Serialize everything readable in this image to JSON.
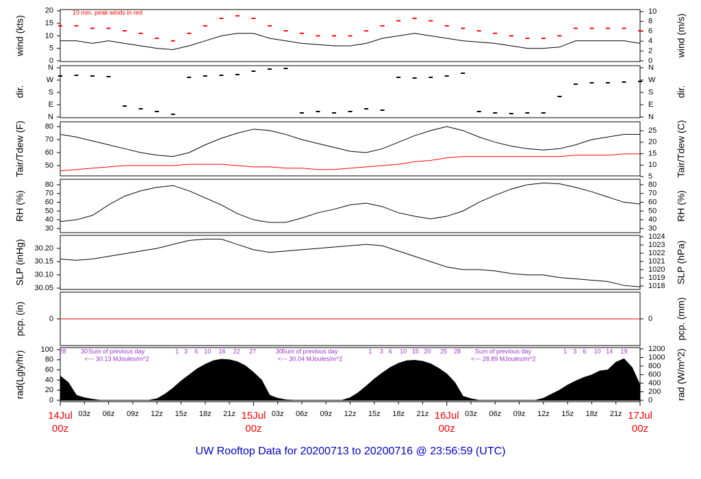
{
  "title": "UW Rooftop Data for 20200713  to  20200716 @ 23:56:59  (UTC)",
  "time_axis": {
    "xlim": [
      0,
      72
    ],
    "xticks": [
      {
        "value": 3,
        "label": "03z"
      },
      {
        "value": 6,
        "label": "06z"
      },
      {
        "value": 9,
        "label": "09z"
      },
      {
        "value": 12,
        "label": "12z"
      },
      {
        "value": 15,
        "label": "15z"
      },
      {
        "value": 18,
        "label": "18z"
      },
      {
        "value": 21,
        "label": "21z"
      },
      {
        "value": 27,
        "label": "03z"
      },
      {
        "value": 30,
        "label": "06z"
      },
      {
        "value": 33,
        "label": "09z"
      },
      {
        "value": 36,
        "label": "12z"
      },
      {
        "value": 39,
        "label": "15z"
      },
      {
        "value": 42,
        "label": "18z"
      },
      {
        "value": 45,
        "label": "21z"
      },
      {
        "value": 51,
        "label": "03z"
      },
      {
        "value": 54,
        "label": "06z"
      },
      {
        "value": 57,
        "label": "09z"
      },
      {
        "value": 60,
        "label": "12z"
      },
      {
        "value": 63,
        "label": "15z"
      },
      {
        "value": 66,
        "label": "18z"
      },
      {
        "value": 69,
        "label": "21z"
      }
    ],
    "day_ticks": [
      {
        "value": 0,
        "label": "14Jul",
        "sublabel": "00z"
      },
      {
        "value": 24,
        "label": "15Jul",
        "sublabel": "00z"
      },
      {
        "value": 48,
        "label": "16Jul",
        "sublabel": "00z"
      },
      {
        "value": 72,
        "label": "17Jul",
        "sublabel": "00z"
      }
    ]
  },
  "chart_data": [
    {
      "type": "line",
      "ylabel": "wind (kts)",
      "y2label": "wind (m/s)",
      "annotation": "10 min. peak winds in red",
      "ylim": [
        -0.3,
        20.5
      ],
      "yticks": [
        0,
        5,
        10,
        15,
        20
      ],
      "y2lim": [
        -0.14,
        10.4
      ],
      "y2ticks": [
        0,
        2,
        4,
        6,
        8,
        10
      ],
      "x": [
        0,
        2,
        4,
        6,
        8,
        10,
        12,
        14,
        16,
        18,
        20,
        22,
        24,
        26,
        28,
        30,
        32,
        34,
        36,
        38,
        40,
        42,
        44,
        46,
        48,
        50,
        52,
        54,
        56,
        58,
        60,
        62,
        64,
        66,
        68,
        70,
        72
      ],
      "series": [
        {
          "name": "wind",
          "color": "#000000",
          "marker": "line",
          "values": [
            8,
            8,
            7,
            8,
            7,
            6,
            5,
            4.5,
            6,
            8,
            10,
            11,
            11,
            9,
            8,
            7,
            6.5,
            6,
            6,
            7,
            9,
            10,
            11,
            10,
            9,
            8,
            7.5,
            7,
            6,
            5,
            5,
            5.5,
            8,
            8,
            8,
            8,
            7
          ]
        },
        {
          "name": "peak",
          "color": "#ff0000",
          "marker": "dash",
          "values": [
            14,
            14,
            13,
            13,
            12,
            11,
            9,
            8,
            11,
            14,
            17,
            18,
            17,
            14,
            12,
            11,
            10,
            10,
            10,
            12,
            14,
            16,
            17,
            16,
            14,
            13,
            12,
            11,
            10,
            9,
            9,
            10,
            13,
            13,
            13,
            13,
            12
          ]
        }
      ]
    },
    {
      "type": "scatter",
      "ylabel": "dir.",
      "y2label": "dir.",
      "ylim": [
        -5,
        375
      ],
      "yticks": [
        {
          "value": 0,
          "label": "N"
        },
        {
          "value": 90,
          "label": "E"
        },
        {
          "value": 180,
          "label": "S"
        },
        {
          "value": 270,
          "label": "W"
        },
        {
          "value": 360,
          "label": "N"
        }
      ],
      "y2lim": [
        -5,
        375
      ],
      "y2ticks": [
        {
          "value": 0,
          "label": "N"
        },
        {
          "value": 90,
          "label": "E"
        },
        {
          "value": 180,
          "label": "S"
        },
        {
          "value": 270,
          "label": "W"
        },
        {
          "value": 360,
          "label": "N"
        }
      ],
      "x": [
        0,
        2,
        4,
        6,
        8,
        10,
        12,
        14,
        16,
        18,
        20,
        22,
        24,
        26,
        28,
        30,
        32,
        34,
        36,
        38,
        40,
        42,
        44,
        46,
        48,
        50,
        52,
        54,
        56,
        58,
        60,
        62,
        64,
        66,
        68,
        70,
        72
      ],
      "series": [
        {
          "name": "direction",
          "color": "#000000",
          "marker": "dash",
          "values": [
            300,
            305,
            300,
            295,
            80,
            60,
            40,
            20,
            290,
            300,
            305,
            310,
            335,
            350,
            355,
            30,
            40,
            30,
            40,
            60,
            50,
            290,
            285,
            290,
            300,
            320,
            40,
            30,
            25,
            30,
            30,
            150,
            240,
            250,
            250,
            255,
            260
          ]
        }
      ]
    },
    {
      "type": "line",
      "ylabel": "Tair/Tdew (F)",
      "y2label": "Tair/Tdew (C)",
      "ylim": [
        42.1,
        83.7
      ],
      "yticks": [
        50,
        60,
        70,
        80
      ],
      "y2lim": [
        5.3,
        28.9
      ],
      "y2ticks": [
        5,
        10,
        15,
        20,
        25
      ],
      "x": [
        0,
        2,
        4,
        6,
        8,
        10,
        12,
        14,
        16,
        18,
        20,
        22,
        24,
        26,
        28,
        30,
        32,
        34,
        36,
        38,
        40,
        42,
        44,
        46,
        48,
        50,
        52,
        54,
        56,
        58,
        60,
        62,
        64,
        66,
        68,
        70,
        72
      ],
      "series": [
        {
          "name": "Tair",
          "color": "#000000",
          "marker": "line",
          "values": [
            74,
            72,
            69,
            66,
            63,
            60,
            58,
            57,
            60,
            66,
            71,
            75,
            78,
            77,
            74,
            70,
            67,
            64,
            61,
            60,
            63,
            68,
            73,
            77,
            80,
            77,
            72,
            68,
            65,
            63,
            62,
            63,
            66,
            70,
            72,
            74,
            74
          ]
        },
        {
          "name": "Tdew",
          "color": "#ff0000",
          "marker": "line",
          "values": [
            46,
            47,
            48,
            49,
            50,
            50,
            50,
            50,
            51,
            51,
            51,
            50,
            49,
            49,
            48,
            48,
            47,
            47,
            48,
            49,
            50,
            51,
            53,
            54,
            56,
            57,
            57,
            57,
            57,
            57,
            57,
            57,
            58,
            58,
            58,
            59,
            59
          ]
        }
      ]
    },
    {
      "type": "line",
      "ylabel": "RH (%)",
      "y2label": "RH (%)",
      "ylim": [
        25.3,
        86.2
      ],
      "yticks": [
        30,
        40,
        50,
        60,
        70,
        80
      ],
      "y2lim": [
        25.3,
        86.2
      ],
      "y2ticks": [
        30,
        40,
        50,
        60,
        70,
        80
      ],
      "x": [
        0,
        2,
        4,
        6,
        8,
        10,
        12,
        14,
        16,
        18,
        20,
        22,
        24,
        26,
        28,
        30,
        32,
        34,
        36,
        38,
        40,
        42,
        44,
        46,
        48,
        50,
        52,
        54,
        56,
        58,
        60,
        62,
        64,
        66,
        68,
        70,
        72
      ],
      "series": [
        {
          "name": "RH",
          "color": "#000000",
          "marker": "line",
          "values": [
            38,
            40,
            45,
            57,
            67,
            73,
            77,
            79,
            73,
            65,
            57,
            47,
            40,
            37,
            37,
            42,
            48,
            52,
            57,
            59,
            55,
            48,
            44,
            41,
            44,
            50,
            60,
            68,
            75,
            80,
            82,
            81,
            77,
            72,
            66,
            60,
            58
          ]
        }
      ]
    },
    {
      "type": "line",
      "ylabel": "SLP (inHg)",
      "y2label": "SLP (hPa)",
      "ylim": [
        30.045,
        30.249
      ],
      "yticks": [
        30.05,
        {
          "value": 30.1,
          "label": "30.10"
        },
        30.15,
        {
          "value": 30.2,
          "label": "30.20"
        }
      ],
      "y2lim": [
        1017.58,
        1024.17
      ],
      "y2ticks": [
        1018,
        1019,
        1020,
        1021,
        1022,
        1023,
        1024
      ],
      "x": [
        0,
        2,
        4,
        6,
        8,
        10,
        12,
        14,
        16,
        18,
        20,
        22,
        24,
        26,
        28,
        30,
        32,
        34,
        36,
        38,
        40,
        42,
        44,
        46,
        48,
        50,
        52,
        54,
        56,
        58,
        60,
        62,
        64,
        66,
        68,
        70,
        72
      ],
      "series": [
        {
          "name": "SLP",
          "color": "#000000",
          "marker": "line",
          "values": [
            30.16,
            30.155,
            30.16,
            30.17,
            30.18,
            30.19,
            30.2,
            30.215,
            30.23,
            30.235,
            30.235,
            30.215,
            30.195,
            30.185,
            30.19,
            30.195,
            30.2,
            30.205,
            30.21,
            30.215,
            30.21,
            30.19,
            30.17,
            30.15,
            30.13,
            30.12,
            30.12,
            30.115,
            30.105,
            30.1,
            30.1,
            30.09,
            30.085,
            30.08,
            30.075,
            30.06,
            30.055
          ]
        }
      ]
    },
    {
      "type": "line",
      "ylabel": "pcp. (in)",
      "y2label": "pcp. (mm)",
      "ylim": [
        -1,
        1
      ],
      "yticks": [
        0
      ],
      "y2lim": [
        -1,
        1
      ],
      "y2ticks": [
        0
      ],
      "x": [
        0,
        72
      ],
      "series": [
        {
          "name": "pcp",
          "color": "#ff0000",
          "marker": "line",
          "values": [
            0,
            0
          ]
        }
      ]
    },
    {
      "type": "area",
      "ylabel": "rad(Lgly/hr)",
      "y2label": "rad (W/m^2)",
      "ylim": [
        -2.7,
        104
      ],
      "yticks": [
        0,
        20,
        40,
        60,
        80,
        100
      ],
      "y2lim": [
        -32,
        1232
      ],
      "y2ticks": [
        0,
        200,
        400,
        600,
        800,
        1000,
        1200
      ],
      "x": [
        0,
        1,
        2,
        3,
        4,
        5,
        6,
        7,
        8,
        9,
        10,
        11,
        12,
        13,
        14,
        15,
        16,
        17,
        18,
        19,
        20,
        21,
        22,
        23,
        24,
        25,
        26,
        27,
        28,
        29,
        30,
        31,
        32,
        33,
        34,
        35,
        36,
        37,
        38,
        39,
        40,
        41,
        42,
        43,
        44,
        45,
        46,
        47,
        48,
        49,
        50,
        51,
        52,
        53,
        54,
        55,
        56,
        57,
        58,
        59,
        60,
        61,
        62,
        63,
        64,
        65,
        66,
        67,
        68,
        69,
        70,
        71,
        72
      ],
      "series": [
        {
          "name": "rad",
          "color": "#000000",
          "values": [
            48,
            35,
            10,
            5,
            2,
            0,
            0,
            0,
            0,
            0,
            0,
            0,
            3,
            12,
            24,
            38,
            50,
            62,
            71,
            78,
            81,
            80,
            76,
            68,
            55,
            40,
            10,
            4,
            1,
            0,
            0,
            0,
            0,
            0,
            0,
            0,
            5,
            15,
            28,
            42,
            54,
            65,
            73,
            78,
            79,
            77,
            72,
            63,
            52,
            35,
            8,
            3,
            0,
            0,
            0,
            0,
            0,
            0,
            0,
            0,
            4,
            12,
            20,
            30,
            38,
            45,
            50,
            58,
            60,
            75,
            82,
            65,
            30
          ]
        }
      ],
      "cumulative": {
        "color": "#9932cc",
        "x": [
          0.3,
          3,
          14.5,
          15.6,
          16.9,
          18.3,
          20.1,
          21.9,
          23.9,
          27.2,
          38.5,
          39.9,
          41,
          42.6,
          44.1,
          45.6,
          47.6,
          49.3,
          62.7,
          63.9,
          65.1,
          66.7,
          68.2,
          70
        ],
        "values": [
          28,
          30,
          1,
          3,
          6,
          10,
          16,
          22,
          27,
          30,
          1,
          3,
          6,
          10,
          15,
          20,
          25,
          28,
          1,
          3,
          6,
          10,
          14,
          19
        ]
      },
      "sum_heading": "Sum of previous day",
      "daily_sums": [
        "<--- 30.13 MJoules/m^2",
        "<--- 30.04 MJoules/m^2",
        "<--- 28.89 MJoules/m^2"
      ]
    }
  ]
}
